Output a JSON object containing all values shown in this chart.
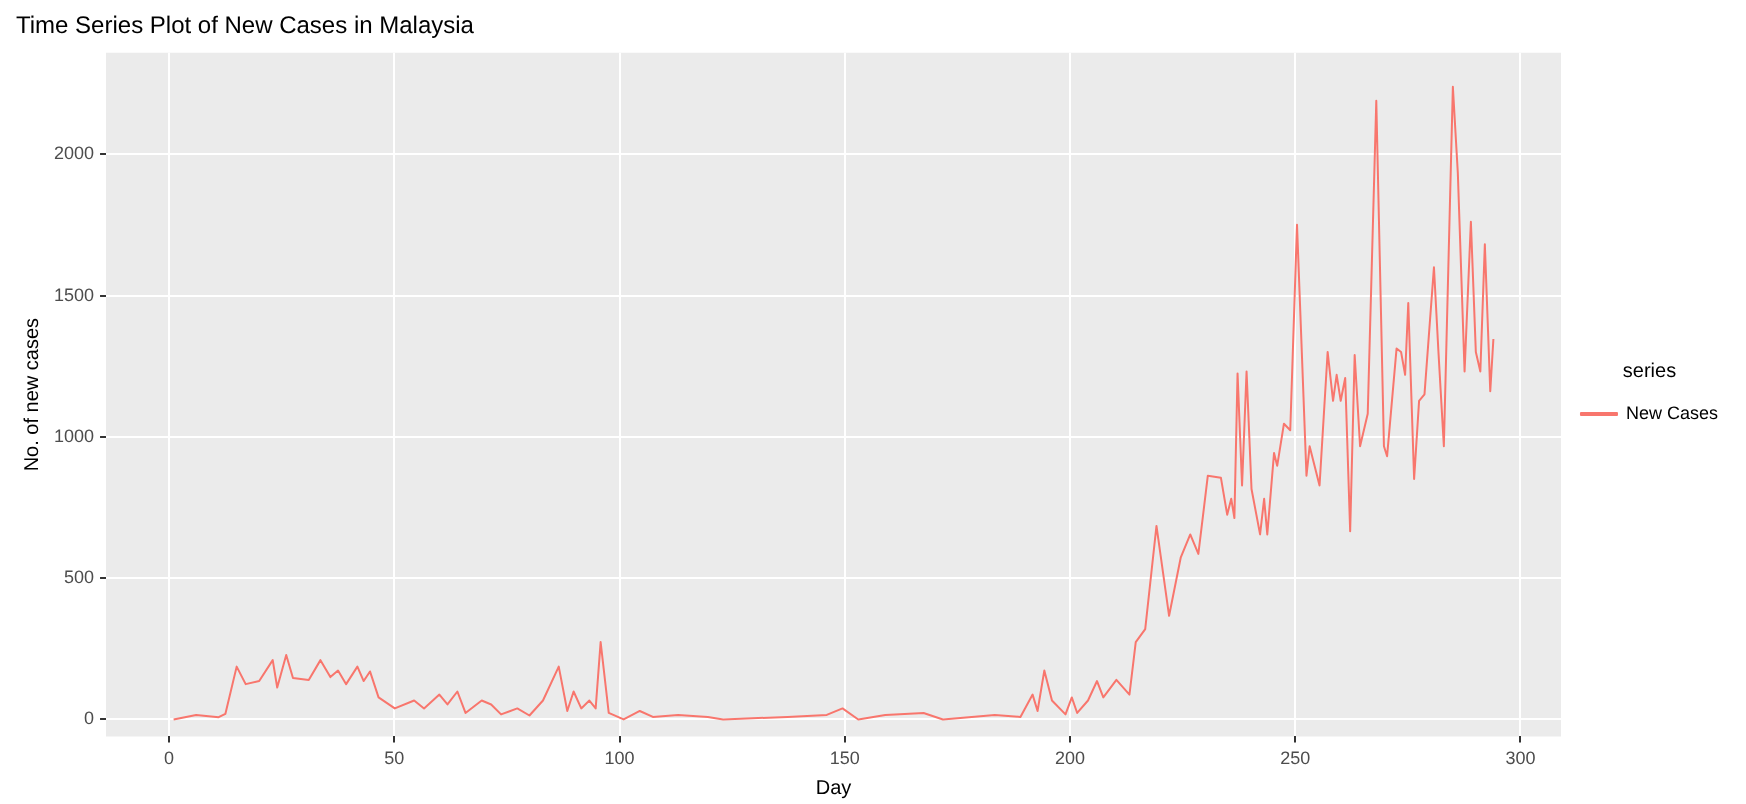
{
  "chart_data": {
    "type": "line",
    "title": "Time Series Plot of New Cases in Malaysia",
    "xlabel": "Day",
    "ylabel": "No. of new cases",
    "legend_title": "series",
    "legend": "right",
    "grid": true,
    "line_style": "solid",
    "marker": "none",
    "xlim": [
      -14,
      309
    ],
    "xticks": [
      0,
      50,
      100,
      150,
      200,
      250,
      300
    ],
    "ylim": [
      -60,
      2360
    ],
    "yticks": [
      0,
      500,
      1000,
      1500,
      2000
    ],
    "series": [
      {
        "name": "New Cases",
        "color": "#f8766d",
        "x": [
          1,
          6,
          11,
          12.5,
          15,
          17,
          20,
          23,
          24,
          26,
          27.5,
          31,
          33.6,
          35.8,
          37.5,
          39.3,
          41.8,
          43.2,
          44.6,
          46.5,
          50.1,
          54.4,
          56.6,
          60,
          61.8,
          64,
          65.8,
          69.4,
          71.5,
          73.7,
          77.3,
          80,
          83,
          86.5,
          88.4,
          89.8,
          91.5,
          93.3,
          94.7,
          95.8,
          97.6,
          100.9,
          104.5,
          107.4,
          113,
          119.6,
          123,
          137.3,
          146,
          149.5,
          153,
          159,
          167.5,
          171.8,
          183.3,
          189,
          191.7,
          192.8,
          194.3,
          196,
          199,
          200.4,
          201.6,
          204,
          206,
          207.4,
          210.3,
          213.2,
          214.6,
          216.7,
          219.2,
          222,
          224.6,
          226.7,
          228.5,
          230.6,
          233.5,
          234.9,
          235.8,
          236.5,
          237.2,
          238.2,
          239.2,
          240.3,
          242.2,
          243.1,
          243.8,
          245.3,
          246,
          247.5,
          248.9,
          250.4,
          252.5,
          253.2,
          255.4,
          257.2,
          258.4,
          259.2,
          260.1,
          261.1,
          262.2,
          263.2,
          264.4,
          266.1,
          268,
          269.7,
          270.4,
          272.5,
          273.5,
          274.4,
          275.1,
          276.4,
          277.5,
          278.7,
          280.8,
          281.8,
          283,
          285,
          286.1,
          287.6,
          289,
          290.1,
          291.1,
          292.1,
          293.3,
          294
        ],
        "values": [
          0,
          16,
          8,
          20,
          187,
          125,
          136,
          210,
          113,
          228,
          147,
          140,
          210,
          150,
          173,
          125,
          187,
          136,
          170,
          78,
          39,
          67,
          39,
          88,
          53,
          99,
          23,
          67,
          53,
          18,
          39,
          14,
          67,
          187,
          30,
          99,
          39,
          67,
          39,
          274,
          23,
          0,
          30,
          9,
          16,
          9,
          0,
          9,
          16,
          39,
          0,
          16,
          23,
          0,
          16,
          9,
          88,
          30,
          173,
          67,
          18,
          78,
          23,
          67,
          136,
          78,
          140,
          88,
          274,
          320,
          685,
          367,
          574,
          655,
          586,
          863,
          856,
          725,
          781,
          713,
          1225,
          828,
          1232,
          816,
          655,
          781,
          655,
          943,
          898,
          1047,
          1024,
          1751,
          863,
          967,
          828,
          1301,
          1128,
          1220,
          1128,
          1209,
          666,
          1290,
          967,
          1082,
          2190,
          967,
          932,
          1313,
          1301,
          1220,
          1474,
          851,
          1128,
          1151,
          1601,
          1301,
          967,
          2240,
          1935,
          1232,
          1762,
          1301,
          1232,
          1682,
          1162,
          1347
        ]
      }
    ]
  }
}
